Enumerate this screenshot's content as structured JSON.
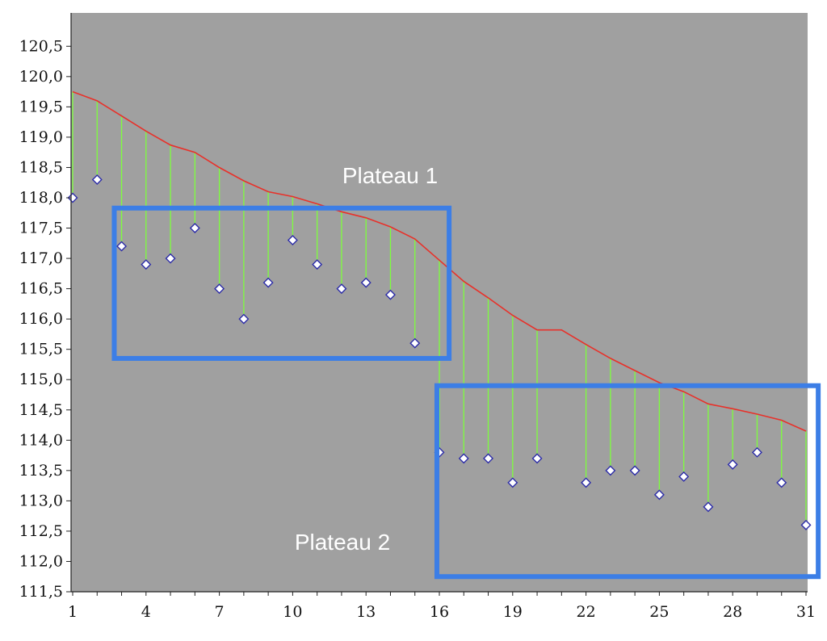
{
  "chart_data": {
    "type": "line",
    "x": [
      1,
      2,
      3,
      4,
      5,
      6,
      7,
      8,
      9,
      10,
      11,
      12,
      13,
      14,
      15,
      16,
      17,
      18,
      19,
      20,
      21,
      22,
      23,
      24,
      25,
      26,
      27,
      28,
      29,
      30,
      31
    ],
    "series": [
      {
        "kind": "line",
        "values": [
          119.75,
          119.6,
          119.35,
          119.1,
          118.87,
          118.75,
          118.5,
          118.28,
          118.1,
          118.02,
          117.9,
          117.77,
          117.67,
          117.52,
          117.32,
          116.97,
          116.62,
          116.35,
          116.06,
          115.82,
          115.82,
          115.58,
          115.35,
          115.15,
          114.95,
          114.8,
          114.6,
          114.52,
          114.43,
          114.33,
          114.15
        ]
      },
      {
        "kind": "points",
        "x": [
          1,
          2,
          3,
          4,
          5,
          6,
          7,
          8,
          9,
          10,
          11,
          12,
          13,
          14,
          15,
          16,
          17,
          18,
          19,
          20,
          22,
          23,
          24,
          25,
          26,
          27,
          28,
          29,
          30,
          31
        ],
        "values": [
          118.0,
          118.3,
          117.2,
          116.9,
          117.0,
          117.5,
          116.5,
          116.0,
          116.6,
          117.3,
          116.9,
          116.5,
          116.6,
          116.4,
          115.6,
          113.8,
          113.7,
          113.7,
          113.3,
          113.7,
          113.3,
          113.5,
          113.5,
          113.1,
          113.4,
          112.9,
          113.6,
          113.8,
          113.3,
          112.6
        ]
      }
    ],
    "xticks": [
      "1",
      "4",
      "7",
      "10",
      "13",
      "16",
      "19",
      "22",
      "25",
      "28",
      "31"
    ],
    "xtick_values": [
      1,
      4,
      7,
      10,
      13,
      16,
      19,
      22,
      25,
      28,
      31
    ],
    "yticks": [
      "111,5",
      "112,0",
      "112,5",
      "113,0",
      "113,5",
      "114,0",
      "114,5",
      "115,0",
      "115,5",
      "116,0",
      "116,5",
      "117,0",
      "117,5",
      "118,0",
      "118,5",
      "119,0",
      "119,5",
      "120,0",
      "120,5"
    ],
    "ytick_values": [
      111.5,
      112.0,
      112.5,
      113.0,
      113.5,
      114.0,
      114.5,
      115.0,
      115.5,
      116.0,
      116.5,
      117.0,
      117.5,
      118.0,
      118.5,
      119.0,
      119.5,
      120.0,
      120.5
    ],
    "xlim": [
      1,
      31
    ],
    "ylim": [
      111.5,
      121.05
    ],
    "grid": false,
    "annotations": [
      {
        "text": "Plateau 1",
        "region": {
          "x": [
            2.7,
            16.4
          ],
          "y": [
            115.35,
            117.83
          ]
        }
      },
      {
        "text": "Plateau 2",
        "region": {
          "x": [
            15.9,
            31.5
          ],
          "y": [
            111.75,
            114.9
          ]
        }
      }
    ],
    "colors": {
      "plot_background": "#a0a0a0",
      "line": "#e8312a",
      "stems": "#7dff3c",
      "markers_fill": "#ffffff",
      "markers_stroke": "#2c2ca8",
      "highlight_box": "#3c7ee6",
      "annotation_text": "#ffffff"
    }
  }
}
